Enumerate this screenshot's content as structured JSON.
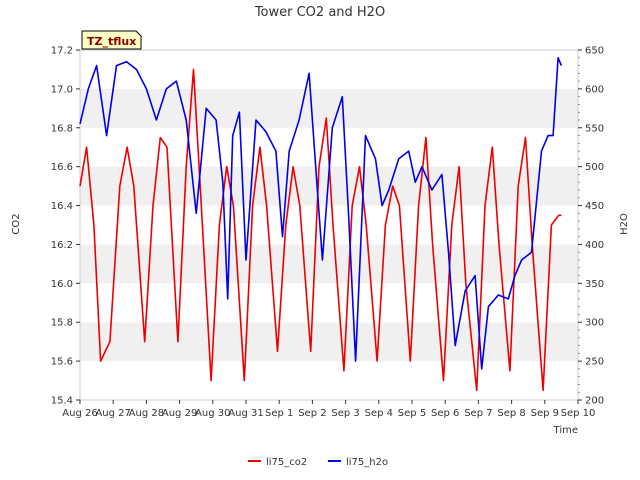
{
  "chart_data": {
    "type": "line",
    "title": "Tower CO2 and H2O",
    "site_label": "TZ_tflux",
    "xlabel": "Time",
    "ylabel_left": "CO2",
    "ylabel_right": "H2O",
    "x_tick_labels": [
      "Aug 26",
      "Aug 27",
      "Aug 28",
      "Aug 29",
      "Aug 30",
      "Aug 31",
      "Sep 1",
      "Sep 2",
      "Sep 3",
      "Sep 4",
      "Sep 5",
      "Sep 6",
      "Sep 7",
      "Sep 8",
      "Sep 9",
      "Sep 10"
    ],
    "xlim": [
      0,
      15
    ],
    "ylim_left": [
      15.4,
      17.2
    ],
    "ylim_right": [
      200,
      650
    ],
    "y_ticks_left": [
      15.4,
      15.6,
      15.8,
      16.0,
      16.2,
      16.4,
      16.6,
      16.8,
      17.0,
      17.2
    ],
    "y_ticks_right": [
      200,
      250,
      300,
      350,
      400,
      450,
      500,
      550,
      600,
      650
    ],
    "grid": "horizontal bands",
    "legend_position": "bottom-center",
    "series": [
      {
        "name": "li75_co2",
        "axis": "left",
        "color": "#ee0000",
        "x": [
          0.0,
          0.2,
          0.42,
          0.62,
          0.9,
          1.2,
          1.42,
          1.62,
          1.95,
          2.2,
          2.42,
          2.62,
          2.95,
          3.2,
          3.42,
          3.62,
          3.95,
          4.2,
          4.42,
          4.62,
          4.95,
          5.2,
          5.42,
          5.62,
          5.95,
          6.2,
          6.42,
          6.62,
          6.95,
          7.2,
          7.42,
          7.62,
          7.95,
          8.2,
          8.42,
          8.62,
          8.95,
          9.2,
          9.42,
          9.62,
          9.95,
          10.2,
          10.42,
          10.62,
          10.95,
          11.2,
          11.42,
          11.62,
          11.95,
          12.2,
          12.42,
          12.62,
          12.95,
          13.2,
          13.42,
          13.62,
          13.95,
          14.2,
          14.42,
          14.5
        ],
        "y": [
          16.5,
          16.7,
          16.3,
          15.6,
          15.7,
          16.5,
          16.7,
          16.5,
          15.7,
          16.4,
          16.75,
          16.7,
          15.7,
          16.6,
          17.1,
          16.5,
          15.5,
          16.3,
          16.6,
          16.4,
          15.5,
          16.4,
          16.7,
          16.4,
          15.65,
          16.3,
          16.6,
          16.4,
          15.65,
          16.6,
          16.85,
          16.3,
          15.55,
          16.4,
          16.6,
          16.3,
          15.6,
          16.3,
          16.5,
          16.4,
          15.6,
          16.4,
          16.75,
          16.2,
          15.5,
          16.3,
          16.6,
          16.0,
          15.45,
          16.4,
          16.7,
          16.2,
          15.55,
          16.5,
          16.75,
          16.2,
          15.45,
          16.3,
          16.35,
          16.35
        ]
      },
      {
        "name": "li75_h2o",
        "axis": "right",
        "color": "#0000ee",
        "x": [
          0.0,
          0.25,
          0.5,
          0.8,
          1.1,
          1.4,
          1.7,
          2.0,
          2.3,
          2.6,
          2.9,
          3.2,
          3.5,
          3.8,
          4.1,
          4.3,
          4.45,
          4.6,
          4.8,
          5.0,
          5.3,
          5.6,
          5.9,
          6.1,
          6.3,
          6.6,
          6.9,
          7.1,
          7.3,
          7.6,
          7.9,
          8.1,
          8.3,
          8.6,
          8.9,
          9.1,
          9.3,
          9.6,
          9.9,
          10.1,
          10.3,
          10.6,
          10.9,
          11.1,
          11.3,
          11.6,
          11.9,
          12.1,
          12.3,
          12.6,
          12.9,
          13.1,
          13.3,
          13.6,
          13.9,
          14.1,
          14.25,
          14.4,
          14.5
        ],
        "y": [
          555,
          600,
          630,
          540,
          630,
          635,
          625,
          600,
          560,
          600,
          610,
          560,
          440,
          575,
          560,
          480,
          330,
          540,
          570,
          380,
          560,
          545,
          520,
          410,
          520,
          560,
          620,
          500,
          380,
          550,
          590,
          430,
          250,
          540,
          510,
          450,
          470,
          510,
          520,
          480,
          500,
          470,
          490,
          390,
          270,
          340,
          360,
          240,
          320,
          335,
          330,
          360,
          380,
          390,
          520,
          540,
          540,
          640,
          630
        ]
      }
    ]
  }
}
